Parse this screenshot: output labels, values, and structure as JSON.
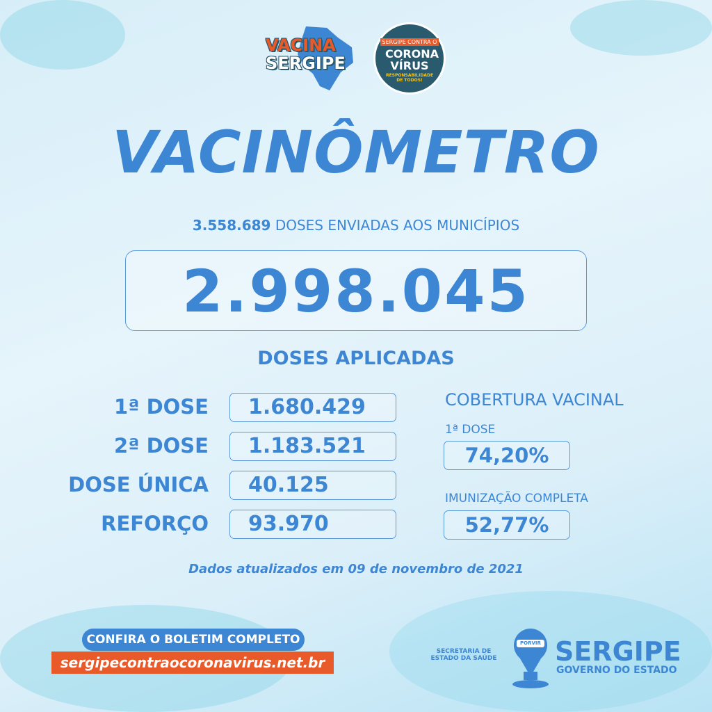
{
  "logos": {
    "vacina_sergipe": "VACINA SERGIPE",
    "contra_corona": {
      "top": "SERGIPE CONTRA O",
      "main": "CORONA VÍRUS",
      "slogan": "RESPONSABILIDADE DE TODOS!"
    }
  },
  "title": "VACINÔMETRO",
  "sent": {
    "value": "3.558.689",
    "label": "DOSES ENVIADAS AOS MUNICÍPIOS"
  },
  "total_applied": "2.998.045",
  "applied_label": "DOSES APLICADAS",
  "doses": [
    {
      "label": "1ª DOSE",
      "value": "1.680.429"
    },
    {
      "label": "2ª DOSE",
      "value": "1.183.521"
    },
    {
      "label": "DOSE ÚNICA",
      "value": "40.125"
    },
    {
      "label": "REFORÇO",
      "value": "93.970"
    }
  ],
  "coverage": {
    "title": "COBERTURA VACINAL",
    "first_label": "1ª DOSE",
    "first_value": "74,20%",
    "full_label": "IMUNIZAÇÃO COMPLETA",
    "full_value": "52,77%"
  },
  "updated": "Dados atualizados em 09 de novembro de 2021",
  "footer": {
    "cta": "CONFIRA O BOLETIM COMPLETO",
    "url": "sergipecontraocoronavirus.net.br",
    "secretaria": "SECRETARIA DE ESTADO DA SAÚDE",
    "brasao": "PORVIR",
    "state": "SERGIPE",
    "gov": "GOVERNO DO ESTADO"
  },
  "colors": {
    "primary": "#3c86d3",
    "accent": "#e85a2a",
    "dark": "#2a5a6e"
  }
}
